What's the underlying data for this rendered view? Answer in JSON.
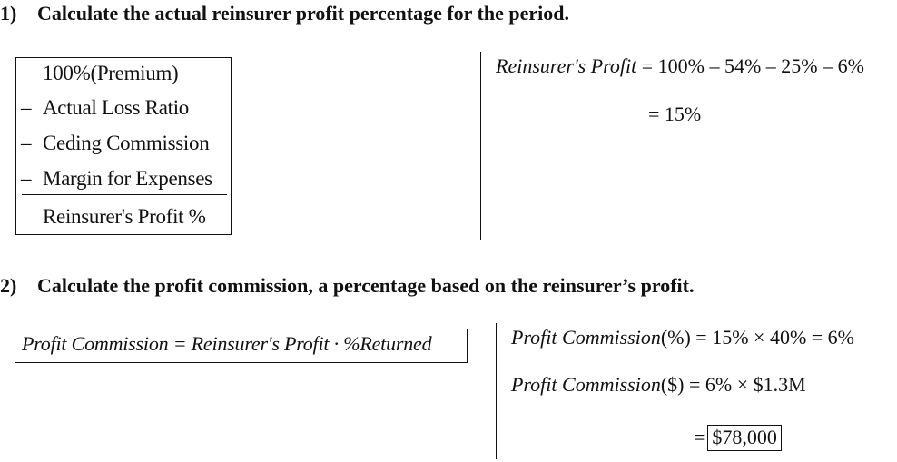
{
  "question1": {
    "number": "1)",
    "text": "Calculate the actual reinsurer profit percentage for the period."
  },
  "profit_table": {
    "rows": [
      {
        "sign": "",
        "label": "100%(Premium)"
      },
      {
        "sign": "–",
        "label": "Actual Loss Ratio"
      },
      {
        "sign": "–",
        "label": "Ceding Commission"
      },
      {
        "sign": "–",
        "label": "Margin for Expenses"
      }
    ],
    "result": "Reinsurer's Profit %"
  },
  "profit_calc": {
    "lhs": "Reinsurer's Profit",
    "rhs": "= 100% – 54% – 25% – 6%",
    "result": "= 15%"
  },
  "question2": {
    "number": "2)",
    "text": "Calculate the profit commission, a percentage based on the reinsurer’s profit."
  },
  "commission_formula": "Profit Commission = Reinsurer's Profit · %Returned",
  "commission_calc": {
    "pct_lhs": "Profit Commission",
    "pct_rhs": "(%) = 15% × 40% = 6%",
    "dollar_lhs": "Profit Commission",
    "dollar_rhs": "($) = 6% × $1.3M",
    "eq_sign": "=",
    "answer": "$78,000"
  }
}
